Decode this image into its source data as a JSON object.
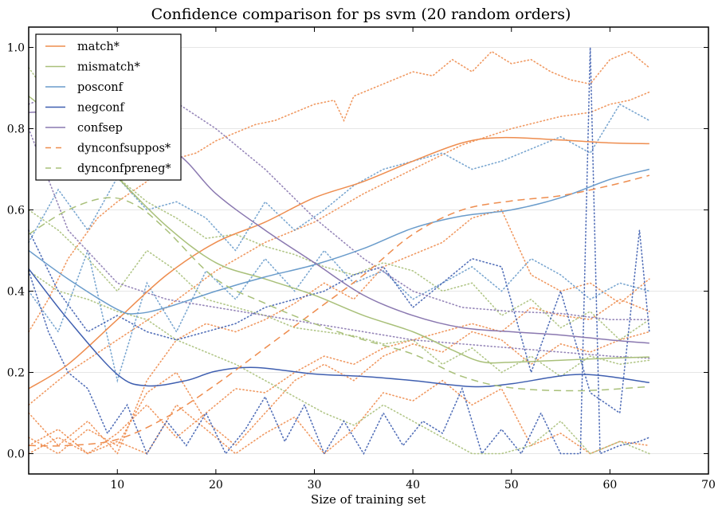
{
  "chart_data": {
    "type": "line",
    "title": "Confidence comparison for ps svm (20 random orders)",
    "xlabel": "Size of training set",
    "ylabel": "",
    "xlim": [
      1,
      70
    ],
    "ylim": [
      -0.05,
      1.05
    ],
    "xticks": [
      10,
      20,
      30,
      40,
      50,
      60,
      70
    ],
    "yticks": [
      0.0,
      0.2,
      0.4,
      0.6,
      0.8,
      1.0
    ],
    "xtick_labels": [
      "10",
      "20",
      "30",
      "40",
      "50",
      "60",
      "70"
    ],
    "ytick_labels": [
      "0.0",
      "0.2",
      "0.4",
      "0.6",
      "0.8",
      "1.0"
    ],
    "grid": "horizontal",
    "legend_position": "top-left",
    "series": [
      {
        "name": "match*",
        "style": "solid",
        "color": "#ee8d4f",
        "x": [
          1,
          5,
          10,
          15,
          20,
          25,
          30,
          35,
          40,
          45,
          49,
          55,
          60,
          64
        ],
        "y": [
          0.16,
          0.22,
          0.33,
          0.44,
          0.52,
          0.57,
          0.63,
          0.67,
          0.72,
          0.765,
          0.778,
          0.772,
          0.765,
          0.763
        ]
      },
      {
        "name": "mismatch*",
        "style": "solid",
        "color": "#a9c07a",
        "x": [
          1,
          5,
          10,
          15,
          20,
          25,
          30,
          35,
          40,
          44,
          47,
          50,
          55,
          60,
          64
        ],
        "y": [
          0.88,
          0.8,
          0.68,
          0.56,
          0.47,
          0.43,
          0.39,
          0.34,
          0.3,
          0.255,
          0.226,
          0.225,
          0.23,
          0.235,
          0.238
        ]
      },
      {
        "name": "posconf",
        "style": "solid",
        "color": "#6a9ccb",
        "x": [
          1,
          5,
          10,
          12,
          15,
          20,
          25,
          30,
          35,
          40,
          45,
          50,
          55,
          60,
          64
        ],
        "y": [
          0.5,
          0.43,
          0.355,
          0.345,
          0.36,
          0.4,
          0.435,
          0.465,
          0.505,
          0.555,
          0.585,
          0.6,
          0.63,
          0.675,
          0.7
        ]
      },
      {
        "name": "negconf",
        "style": "solid",
        "color": "#3f5fb0",
        "x": [
          1,
          5,
          10,
          13,
          17,
          20,
          24,
          30,
          35,
          40,
          46,
          50,
          57,
          64
        ],
        "y": [
          0.455,
          0.33,
          0.195,
          0.167,
          0.18,
          0.203,
          0.212,
          0.196,
          0.19,
          0.18,
          0.165,
          0.172,
          0.195,
          0.175
        ]
      },
      {
        "name": "confsep",
        "style": "solid",
        "color": "#8a78b0",
        "x": [
          1,
          5,
          10,
          16,
          20,
          25,
          30,
          35,
          40,
          45,
          50,
          55,
          60,
          64
        ],
        "y": [
          0.84,
          0.84,
          0.81,
          0.74,
          0.64,
          0.55,
          0.47,
          0.39,
          0.34,
          0.31,
          0.3,
          0.292,
          0.28,
          0.272
        ]
      },
      {
        "name": "dynconfsuppos*",
        "style": "dashed",
        "color": "#ee8d4f",
        "x": [
          1,
          5,
          10,
          15,
          20,
          25,
          30,
          35,
          40,
          45,
          50,
          55,
          60,
          64
        ],
        "y": [
          0.02,
          0.02,
          0.035,
          0.09,
          0.17,
          0.26,
          0.35,
          0.44,
          0.54,
          0.6,
          0.622,
          0.635,
          0.66,
          0.685
        ]
      },
      {
        "name": "dynconfpreneg*",
        "style": "dashed",
        "color": "#a9c07a",
        "x": [
          1,
          5,
          9,
          12,
          15,
          20,
          25,
          30,
          35,
          40,
          45,
          50,
          57,
          64
        ],
        "y": [
          0.54,
          0.6,
          0.63,
          0.61,
          0.55,
          0.43,
          0.37,
          0.32,
          0.28,
          0.245,
          0.19,
          0.162,
          0.155,
          0.165
        ]
      }
    ],
    "dotted_series": [
      {
        "color": "#ee8d4f",
        "x": [
          1,
          3,
          5,
          8,
          10,
          13,
          15,
          18,
          20,
          22,
          24,
          26,
          28,
          30,
          32,
          33,
          34,
          36,
          38,
          40,
          42,
          44,
          46,
          48,
          50,
          52,
          54,
          56,
          58,
          60,
          62,
          64
        ],
        "y": [
          0.3,
          0.38,
          0.48,
          0.58,
          0.62,
          0.67,
          0.72,
          0.74,
          0.77,
          0.79,
          0.81,
          0.82,
          0.84,
          0.86,
          0.87,
          0.82,
          0.88,
          0.9,
          0.92,
          0.94,
          0.93,
          0.97,
          0.94,
          0.99,
          0.96,
          0.97,
          0.94,
          0.92,
          0.91,
          0.97,
          0.99,
          0.95
        ]
      },
      {
        "color": "#ee8d4f",
        "x": [
          1,
          5,
          10,
          15,
          20,
          25,
          30,
          35,
          40,
          45,
          50,
          55,
          58,
          60,
          62,
          64
        ],
        "y": [
          0.12,
          0.2,
          0.28,
          0.36,
          0.45,
          0.52,
          0.57,
          0.64,
          0.7,
          0.76,
          0.8,
          0.83,
          0.84,
          0.86,
          0.87,
          0.89
        ]
      },
      {
        "color": "#ee8d4f",
        "x": [
          1,
          4,
          7,
          10,
          13,
          16,
          19,
          22,
          25,
          28,
          31,
          34,
          37,
          40,
          43,
          46,
          49,
          52,
          55,
          58,
          61,
          64
        ],
        "y": [
          0.1,
          0.02,
          0.08,
          0.0,
          0.18,
          0.28,
          0.32,
          0.3,
          0.33,
          0.37,
          0.42,
          0.38,
          0.46,
          0.49,
          0.52,
          0.58,
          0.6,
          0.44,
          0.4,
          0.42,
          0.37,
          0.43
        ]
      },
      {
        "color": "#ee8d4f",
        "x": [
          1,
          4,
          7,
          10,
          13,
          16,
          19,
          22,
          25,
          28,
          31,
          34,
          37,
          40,
          43,
          46,
          49,
          52,
          55,
          58,
          61,
          64
        ],
        "y": [
          0.02,
          0.06,
          0.0,
          0.05,
          0.12,
          0.04,
          0.1,
          0.16,
          0.15,
          0.2,
          0.24,
          0.22,
          0.26,
          0.28,
          0.3,
          0.32,
          0.3,
          0.36,
          0.34,
          0.33,
          0.38,
          0.35
        ]
      },
      {
        "color": "#ee8d4f",
        "x": [
          1,
          4,
          7,
          10,
          13,
          16,
          19,
          22,
          25,
          28,
          31,
          34,
          37,
          40,
          43,
          46,
          49,
          52,
          55,
          58,
          61,
          64
        ],
        "y": [
          0.04,
          0.0,
          0.06,
          0.02,
          0.15,
          0.2,
          0.08,
          0.02,
          0.1,
          0.18,
          0.22,
          0.18,
          0.24,
          0.27,
          0.25,
          0.3,
          0.28,
          0.22,
          0.27,
          0.25,
          0.28,
          0.3
        ]
      },
      {
        "color": "#ee8d4f",
        "x": [
          1,
          4,
          7,
          10,
          13,
          16,
          19,
          22,
          25,
          28,
          31,
          34,
          37,
          40,
          43,
          46,
          49,
          52,
          55,
          58,
          61,
          64
        ],
        "y": [
          0.0,
          0.04,
          0.0,
          0.03,
          0.0,
          0.12,
          0.06,
          0.0,
          0.05,
          0.09,
          0.0,
          0.06,
          0.15,
          0.13,
          0.18,
          0.12,
          0.16,
          0.02,
          0.05,
          0.0,
          0.03,
          0.02
        ]
      },
      {
        "color": "#a9c07a",
        "x": [
          1,
          4,
          7,
          10,
          13,
          16,
          19,
          22,
          25,
          28,
          31,
          34,
          37,
          40,
          43,
          46,
          49,
          52,
          55,
          58,
          61,
          64
        ],
        "y": [
          0.95,
          0.85,
          0.75,
          0.68,
          0.62,
          0.58,
          0.53,
          0.54,
          0.51,
          0.49,
          0.46,
          0.44,
          0.47,
          0.45,
          0.4,
          0.42,
          0.34,
          0.38,
          0.31,
          0.35,
          0.28,
          0.33
        ]
      },
      {
        "color": "#a9c07a",
        "x": [
          1,
          4,
          7,
          10,
          13,
          16,
          19,
          22,
          25,
          28,
          31,
          34,
          37,
          40,
          43,
          46,
          49,
          52,
          55,
          58,
          61,
          64
        ],
        "y": [
          0.6,
          0.55,
          0.48,
          0.4,
          0.5,
          0.45,
          0.38,
          0.36,
          0.34,
          0.31,
          0.3,
          0.29,
          0.27,
          0.28,
          0.22,
          0.26,
          0.2,
          0.24,
          0.19,
          0.24,
          0.22,
          0.23
        ]
      },
      {
        "color": "#a9c07a",
        "x": [
          1,
          4,
          7,
          10,
          13,
          16,
          19,
          22,
          25,
          28,
          31,
          34,
          37,
          40,
          43,
          46,
          49,
          52,
          55,
          58,
          61,
          64
        ],
        "y": [
          0.45,
          0.4,
          0.38,
          0.35,
          0.33,
          0.28,
          0.25,
          0.22,
          0.18,
          0.14,
          0.1,
          0.07,
          0.12,
          0.08,
          0.04,
          0.0,
          0.0,
          0.02,
          0.08,
          0.0,
          0.03,
          0.0
        ]
      },
      {
        "color": "#6a9ccb",
        "x": [
          1,
          4,
          7,
          10,
          13,
          16,
          19,
          22,
          25,
          28,
          31,
          34,
          37,
          40,
          43,
          46,
          49,
          52,
          55,
          58,
          61,
          64
        ],
        "y": [
          0.52,
          0.65,
          0.55,
          0.68,
          0.6,
          0.62,
          0.58,
          0.5,
          0.62,
          0.55,
          0.6,
          0.66,
          0.7,
          0.72,
          0.74,
          0.7,
          0.72,
          0.75,
          0.78,
          0.74,
          0.86,
          0.82
        ]
      },
      {
        "color": "#6a9ccb",
        "x": [
          1,
          4,
          7,
          10,
          13,
          16,
          19,
          22,
          25,
          28,
          31,
          34,
          37,
          40,
          43,
          46,
          49,
          52,
          55,
          58,
          61,
          64
        ],
        "y": [
          0.4,
          0.3,
          0.5,
          0.18,
          0.42,
          0.3,
          0.45,
          0.38,
          0.48,
          0.4,
          0.5,
          0.42,
          0.45,
          0.38,
          0.42,
          0.46,
          0.4,
          0.48,
          0.44,
          0.38,
          0.42,
          0.4
        ]
      },
      {
        "color": "#3f5fb0",
        "x": [
          1,
          3,
          5,
          7,
          9,
          11,
          13,
          15,
          17,
          19,
          21,
          23,
          25,
          27,
          29,
          31,
          33,
          35,
          37,
          39,
          41,
          43,
          45,
          47,
          49,
          51,
          53,
          55,
          57,
          58,
          59,
          61,
          63,
          64
        ],
        "y": [
          0.45,
          0.3,
          0.2,
          0.16,
          0.05,
          0.12,
          0.0,
          0.08,
          0.02,
          0.1,
          0.0,
          0.06,
          0.14,
          0.03,
          0.12,
          0.0,
          0.08,
          0.0,
          0.1,
          0.02,
          0.08,
          0.05,
          0.16,
          0.0,
          0.06,
          0.0,
          0.1,
          0.0,
          0.0,
          1.0,
          0.0,
          0.02,
          0.03,
          0.04
        ]
      },
      {
        "color": "#3f5fb0",
        "x": [
          1,
          4,
          7,
          10,
          13,
          16,
          19,
          22,
          25,
          28,
          31,
          34,
          37,
          40,
          43,
          46,
          49,
          52,
          55,
          58,
          61,
          63,
          64
        ],
        "y": [
          0.55,
          0.4,
          0.3,
          0.34,
          0.3,
          0.28,
          0.3,
          0.32,
          0.36,
          0.38,
          0.4,
          0.44,
          0.46,
          0.36,
          0.42,
          0.48,
          0.46,
          0.2,
          0.4,
          0.15,
          0.1,
          0.55,
          0.3
        ]
      },
      {
        "color": "#8a78b0",
        "x": [
          1,
          5,
          10,
          15,
          20,
          25,
          30,
          35,
          40,
          45,
          50,
          55,
          60,
          64
        ],
        "y": [
          0.86,
          0.9,
          0.92,
          0.88,
          0.8,
          0.7,
          0.58,
          0.48,
          0.4,
          0.36,
          0.35,
          0.345,
          0.33,
          0.33
        ]
      },
      {
        "color": "#8a78b0",
        "x": [
          1,
          5,
          10,
          15,
          20,
          25,
          30,
          35,
          40,
          45,
          50,
          55,
          60,
          64
        ],
        "y": [
          0.8,
          0.55,
          0.42,
          0.38,
          0.36,
          0.34,
          0.32,
          0.3,
          0.28,
          0.27,
          0.26,
          0.25,
          0.24,
          0.235
        ]
      }
    ]
  }
}
